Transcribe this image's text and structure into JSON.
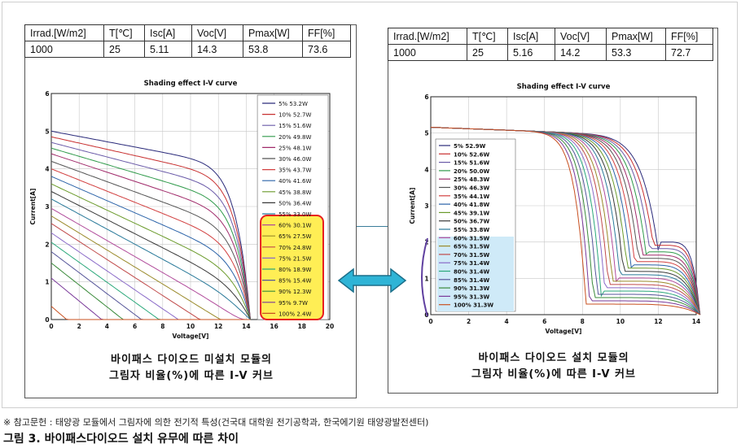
{
  "left_panel": {
    "table": {
      "headers": [
        "Irrad.[W/m2]",
        "T[℃]",
        "Isc[A]",
        "Voc[V]",
        "Pmax[W]",
        "FF[%]"
      ],
      "values": [
        "1000",
        "25",
        "5.11",
        "14.3",
        "53.8",
        "73.6"
      ]
    },
    "caption_line1": "바이패스 다이오드 미설치 모듈의",
    "caption_line2": "그림자 비율(%)에 따른 I-V 커브"
  },
  "right_panel": {
    "table": {
      "headers": [
        "Irrad.[W/m2]",
        "T[℃]",
        "Isc[A]",
        "Voc[V]",
        "Pmax[W]",
        "FF[%]"
      ],
      "values": [
        "1000",
        "25",
        "5.16",
        "14.2",
        "53.3",
        "72.7"
      ]
    },
    "caption_line1": "바이패스 다이오드 설치 모듈의",
    "caption_line2": "그림자 비율(%)에 따른 I-V 커브"
  },
  "footnote": "※ 참고문헌 : 태양광 모듈에서 그림자에 의한 전기적 특성(건국대 대학원 전기공학과, 한국에기원 태양광발전센터)",
  "figure_title": "그림 3. 바이패스다이오드 설치 유무에 따른 차이",
  "colors": {
    "highlight_yellow": "#ffee55",
    "highlight_border": "#e82020",
    "highlight_cyan": "#cfeaf8",
    "bracket_purple": "#6040a0",
    "arrow_cyan": "#2fb4d6"
  },
  "chart_data": [
    {
      "type": "line",
      "title": "Shading effect I-V curve",
      "xlabel": "Voltage[V]",
      "ylabel": "Current[A]",
      "xlim": [
        0,
        20
      ],
      "ylim": [
        0,
        6
      ],
      "xticks": [
        0,
        2,
        4,
        6,
        8,
        10,
        12,
        14,
        16,
        18,
        20
      ],
      "yticks": [
        0,
        1,
        2,
        3,
        4,
        5,
        6
      ],
      "grid": true,
      "legend_position": "right",
      "voc": 14.3,
      "isc": 5.11,
      "series": [
        {
          "name": "5% 53.2W",
          "isc": 5.0
        },
        {
          "name": "10% 52.7W",
          "isc": 4.85
        },
        {
          "name": "15% 51.6W",
          "isc": 4.7
        },
        {
          "name": "20% 49.8W",
          "isc": 4.55
        },
        {
          "name": "25% 48.1W",
          "isc": 4.4
        },
        {
          "name": "30% 46.0W",
          "isc": 4.2
        },
        {
          "name": "35% 43.7W",
          "isc": 4.0
        },
        {
          "name": "40% 41.6W",
          "isc": 3.8
        },
        {
          "name": "45% 38.8W",
          "isc": 3.6
        },
        {
          "name": "50% 36.4W",
          "isc": 3.4
        },
        {
          "name": "55% 33.0W",
          "isc": 3.2
        },
        {
          "name": "60% 30.1W",
          "isc": 2.95
        },
        {
          "name": "65% 27.5W",
          "isc": 2.75
        },
        {
          "name": "70% 24.8W",
          "isc": 2.55
        },
        {
          "name": "75% 21.5W",
          "isc": 2.3
        },
        {
          "name": "80% 18.9W",
          "isc": 2.05
        },
        {
          "name": "85% 15.4W",
          "isc": 1.8
        },
        {
          "name": "90% 12.3W",
          "isc": 1.5
        },
        {
          "name": "95% 9.7W",
          "isc": 1.1
        },
        {
          "name": "100% 2.4W",
          "isc": 0.35
        }
      ]
    },
    {
      "type": "line",
      "title": "Shading effect I-V curve",
      "xlabel": "Voltage[V]",
      "ylabel": "Current[A]",
      "xlim": [
        0,
        14
      ],
      "ylim": [
        0,
        6
      ],
      "xticks": [
        0,
        2,
        4,
        6,
        8,
        10,
        12,
        14
      ],
      "yticks": [
        0,
        1,
        2,
        3,
        4,
        5,
        6
      ],
      "grid": true,
      "legend_position": "left",
      "voc": 14.2,
      "isc": 5.16,
      "series": [
        {
          "name": "5% 52.9W",
          "knee": 12.0
        },
        {
          "name": "10% 52.6W",
          "knee": 11.8
        },
        {
          "name": "15% 51.6W",
          "knee": 11.6
        },
        {
          "name": "20% 50.0W",
          "knee": 11.4
        },
        {
          "name": "25% 48.3W",
          "knee": 11.2
        },
        {
          "name": "30% 46.3W",
          "knee": 11.0
        },
        {
          "name": "35% 44.1W",
          "knee": 10.8
        },
        {
          "name": "40% 41.8W",
          "knee": 10.6
        },
        {
          "name": "45% 39.1W",
          "knee": 10.4
        },
        {
          "name": "50% 36.7W",
          "knee": 10.2
        },
        {
          "name": "55% 33.8W",
          "knee": 10.0
        },
        {
          "name": "60% 31.5W",
          "knee": 9.8
        },
        {
          "name": "65% 31.5W",
          "knee": 9.6
        },
        {
          "name": "70% 31.5W",
          "knee": 9.4
        },
        {
          "name": "75% 31.4W",
          "knee": 9.2
        },
        {
          "name": "80% 31.4W",
          "knee": 9.0
        },
        {
          "name": "85% 31.4W",
          "knee": 8.8
        },
        {
          "name": "90% 31.3W",
          "knee": 8.6
        },
        {
          "name": "95% 31.3W",
          "knee": 8.4
        },
        {
          "name": "100% 31.3W",
          "knee": 8.2
        }
      ]
    }
  ]
}
